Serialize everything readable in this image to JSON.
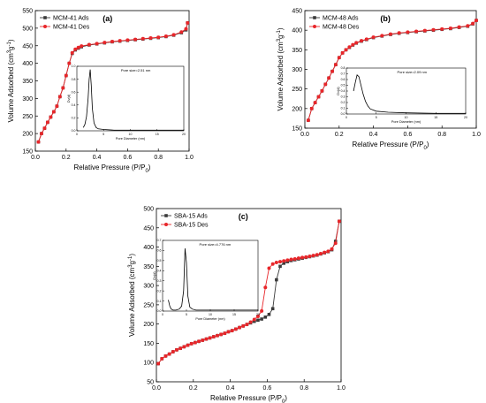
{
  "colors": {
    "ads": "#3a3a3a",
    "des": "#e8262a",
    "axis": "#000000"
  },
  "chart_data": [
    {
      "panel": "(a)",
      "type": "line",
      "xlabel": "Relative Pressure (P/P",
      "xlabel_sub": "0",
      "xlabel_tail": ")",
      "ylabel": "Volume Adsorbed (cm",
      "ylabel_sup": "3",
      "ylabel_mid": "g",
      "ylabel_sup2": "-1",
      "ylabel_tail": ")",
      "xlim": [
        0,
        1.0
      ],
      "ylim": [
        150,
        550
      ],
      "xticks": [
        0.0,
        0.2,
        0.4,
        0.6,
        0.8,
        1.0
      ],
      "yticks": [
        150,
        200,
        250,
        300,
        350,
        400,
        450,
        500,
        550
      ],
      "legend": [
        "MCM-41 Ads",
        "MCM-41 Des"
      ],
      "legend_position": "top-left",
      "series": [
        {
          "name": "MCM-41 Ads",
          "x": [
            0.02,
            0.04,
            0.06,
            0.08,
            0.1,
            0.12,
            0.14,
            0.16,
            0.18,
            0.2,
            0.22,
            0.24,
            0.26,
            0.28,
            0.3,
            0.35,
            0.4,
            0.45,
            0.5,
            0.55,
            0.6,
            0.65,
            0.7,
            0.75,
            0.8,
            0.85,
            0.9,
            0.95,
            0.98,
            0.99
          ],
          "y": [
            176,
            200,
            215,
            232,
            247,
            262,
            278,
            305,
            330,
            365,
            400,
            428,
            438,
            443,
            447,
            452,
            455,
            458,
            461,
            463,
            465,
            467,
            469,
            471,
            473,
            476,
            480,
            487,
            495,
            515
          ]
        },
        {
          "name": "MCM-41 Des",
          "x": [
            0.02,
            0.04,
            0.06,
            0.08,
            0.1,
            0.12,
            0.14,
            0.16,
            0.18,
            0.2,
            0.22,
            0.24,
            0.26,
            0.28,
            0.3,
            0.35,
            0.4,
            0.45,
            0.5,
            0.55,
            0.6,
            0.65,
            0.7,
            0.75,
            0.8,
            0.85,
            0.9,
            0.95,
            0.98,
            0.99
          ],
          "y": [
            176,
            200,
            215,
            232,
            247,
            262,
            278,
            305,
            330,
            365,
            400,
            430,
            440,
            445,
            449,
            453,
            456,
            459,
            462,
            464,
            466,
            468,
            470,
            472,
            474,
            477,
            481,
            489,
            498,
            515
          ]
        }
      ],
      "inset": {
        "title": "Pore size=2.51 nm",
        "xlabel": "Pore Diameter (nm)",
        "ylabel": "Dv(d)",
        "xlim": [
          0,
          20
        ],
        "ylim": [
          0,
          1.0
        ],
        "xticks": [
          0,
          5,
          10,
          15,
          20
        ],
        "yticks": [
          0,
          0.2,
          0.4,
          0.6,
          0.8,
          1.0
        ],
        "x": [
          1.2,
          1.5,
          1.8,
          2.1,
          2.3,
          2.5,
          2.7,
          2.9,
          3.2,
          3.6,
          4.0,
          5,
          7,
          10,
          15,
          20
        ],
        "y": [
          0.05,
          0.1,
          0.22,
          0.5,
          0.8,
          0.95,
          0.7,
          0.35,
          0.12,
          0.05,
          0.03,
          0.02,
          0.01,
          0.01,
          0.01,
          0.01
        ]
      }
    },
    {
      "panel": "(b)",
      "type": "line",
      "xlabel": "Relative Pressure (P/P",
      "xlabel_sub": "0",
      "xlabel_tail": ")",
      "ylabel": "Volume Adsorbed (cm",
      "ylabel_sup": "3",
      "ylabel_mid": "g",
      "ylabel_sup2": "-1",
      "ylabel_tail": ")",
      "xlim": [
        0,
        1.0
      ],
      "ylim": [
        150,
        450
      ],
      "xticks": [
        0.0,
        0.2,
        0.4,
        0.6,
        0.8,
        1.0
      ],
      "yticks": [
        150,
        200,
        250,
        300,
        350,
        400,
        450
      ],
      "legend": [
        "MCM-48 Ads",
        "MCM-48 Des"
      ],
      "legend_position": "top-left",
      "series": [
        {
          "name": "MCM-48 Ads",
          "x": [
            0.02,
            0.04,
            0.06,
            0.08,
            0.1,
            0.12,
            0.14,
            0.16,
            0.18,
            0.2,
            0.22,
            0.24,
            0.26,
            0.28,
            0.3,
            0.33,
            0.36,
            0.4,
            0.45,
            0.5,
            0.55,
            0.6,
            0.65,
            0.7,
            0.75,
            0.8,
            0.85,
            0.9,
            0.95,
            0.98,
            1.0
          ],
          "y": [
            170,
            200,
            215,
            230,
            245,
            262,
            278,
            295,
            312,
            330,
            342,
            350,
            356,
            362,
            367,
            372,
            376,
            381,
            385,
            389,
            392,
            394,
            396,
            398,
            400,
            402,
            404,
            407,
            410,
            416,
            425
          ]
        },
        {
          "name": "MCM-48 Des",
          "x": [
            0.02,
            0.04,
            0.06,
            0.08,
            0.1,
            0.12,
            0.14,
            0.16,
            0.18,
            0.2,
            0.22,
            0.24,
            0.26,
            0.28,
            0.3,
            0.33,
            0.36,
            0.4,
            0.45,
            0.5,
            0.55,
            0.6,
            0.65,
            0.7,
            0.75,
            0.8,
            0.85,
            0.9,
            0.95,
            0.98,
            1.0
          ],
          "y": [
            170,
            200,
            215,
            230,
            245,
            262,
            278,
            295,
            312,
            330,
            342,
            350,
            357,
            363,
            368,
            373,
            377,
            382,
            386,
            390,
            393,
            395,
            397,
            399,
            401,
            403,
            405,
            408,
            411,
            417,
            425
          ]
        }
      ],
      "inset": {
        "title": "Pore size=2.09 nm",
        "xlabel": "Pore Diameter (nm)",
        "ylabel": "Dv(d)",
        "xlim": [
          0,
          20
        ],
        "ylim": [
          0,
          0.8
        ],
        "xticks": [
          0,
          5,
          10,
          15,
          20
        ],
        "yticks": [
          0,
          0.1,
          0.2,
          0.3,
          0.4,
          0.5,
          0.6,
          0.7,
          0.8
        ],
        "x": [
          1.2,
          1.5,
          1.8,
          2.1,
          2.4,
          2.8,
          3.2,
          3.6,
          4.0,
          5,
          7,
          10,
          15,
          20
        ],
        "y": [
          0.4,
          0.55,
          0.68,
          0.65,
          0.52,
          0.35,
          0.22,
          0.14,
          0.09,
          0.05,
          0.03,
          0.02,
          0.01,
          0.01
        ]
      }
    },
    {
      "panel": "(c)",
      "type": "line",
      "xlabel": "Relative Pressure (P/P",
      "xlabel_sub": "0",
      "xlabel_tail": ")",
      "ylabel": "Volume Adsorbed (cm",
      "ylabel_sup": "3",
      "ylabel_mid": "g",
      "ylabel_sup2": "-1",
      "ylabel_tail": ")",
      "xlim": [
        0,
        1.0
      ],
      "ylim": [
        50,
        500
      ],
      "xticks": [
        0.0,
        0.2,
        0.4,
        0.6,
        0.8,
        1.0
      ],
      "yticks": [
        50,
        100,
        150,
        200,
        250,
        300,
        350,
        400,
        450,
        500
      ],
      "legend": [
        "SBA-15 Ads",
        "SBA-15 Des"
      ],
      "legend_position": "top-left",
      "series": [
        {
          "name": "SBA-15 Ads",
          "x": [
            0.01,
            0.03,
            0.05,
            0.07,
            0.09,
            0.11,
            0.13,
            0.15,
            0.17,
            0.19,
            0.21,
            0.23,
            0.25,
            0.27,
            0.29,
            0.31,
            0.33,
            0.35,
            0.37,
            0.39,
            0.41,
            0.43,
            0.45,
            0.47,
            0.49,
            0.51,
            0.53,
            0.55,
            0.57,
            0.59,
            0.61,
            0.63,
            0.65,
            0.67,
            0.69,
            0.71,
            0.73,
            0.75,
            0.77,
            0.79,
            0.81,
            0.83,
            0.85,
            0.87,
            0.89,
            0.91,
            0.93,
            0.95,
            0.97,
            0.99
          ],
          "y": [
            97,
            110,
            117,
            122,
            128,
            133,
            137,
            141,
            145,
            149,
            152,
            155,
            158,
            161,
            164,
            167,
            170,
            173,
            176,
            180,
            183,
            187,
            191,
            195,
            199,
            203,
            207,
            210,
            213,
            218,
            225,
            240,
            315,
            350,
            358,
            362,
            365,
            367,
            369,
            371,
            373,
            375,
            377,
            379,
            382,
            385,
            388,
            393,
            415,
            467
          ]
        },
        {
          "name": "SBA-15 Des",
          "x": [
            0.01,
            0.03,
            0.05,
            0.07,
            0.09,
            0.11,
            0.13,
            0.15,
            0.17,
            0.19,
            0.21,
            0.23,
            0.25,
            0.27,
            0.29,
            0.31,
            0.33,
            0.35,
            0.37,
            0.39,
            0.41,
            0.43,
            0.45,
            0.47,
            0.49,
            0.51,
            0.53,
            0.55,
            0.57,
            0.59,
            0.61,
            0.63,
            0.65,
            0.67,
            0.69,
            0.71,
            0.73,
            0.75,
            0.77,
            0.79,
            0.81,
            0.83,
            0.85,
            0.87,
            0.89,
            0.91,
            0.93,
            0.95,
            0.97,
            0.99
          ],
          "y": [
            97,
            110,
            117,
            122,
            128,
            133,
            137,
            141,
            145,
            149,
            152,
            155,
            158,
            161,
            164,
            167,
            170,
            173,
            176,
            180,
            183,
            187,
            191,
            195,
            199,
            205,
            212,
            220,
            234,
            295,
            345,
            356,
            360,
            362,
            364,
            366,
            368,
            369,
            371,
            373,
            374,
            376,
            378,
            380,
            383,
            386,
            389,
            395,
            410,
            467
          ]
        }
      ],
      "inset": {
        "title": "Pore size=4.776 nm",
        "xlabel": "Pore Diameter (nm)",
        "ylabel": "Dv(d)",
        "xlim": [
          0,
          20
        ],
        "ylim": [
          0,
          0.7
        ],
        "xticks": [
          0,
          5,
          10,
          15,
          20
        ],
        "yticks": [
          0,
          0.1,
          0.2,
          0.3,
          0.4,
          0.5,
          0.6,
          0.7
        ],
        "x": [
          1.2,
          1.5,
          1.8,
          2.2,
          2.8,
          3.5,
          4.0,
          4.4,
          4.7,
          5.0,
          5.3,
          5.7,
          6.2,
          7,
          9,
          12,
          16,
          20
        ],
        "y": [
          0.11,
          0.05,
          0.02,
          0.01,
          0.01,
          0.02,
          0.05,
          0.2,
          0.62,
          0.48,
          0.15,
          0.04,
          0.02,
          0.01,
          0.01,
          0.01,
          0.01,
          0.01
        ]
      }
    }
  ]
}
